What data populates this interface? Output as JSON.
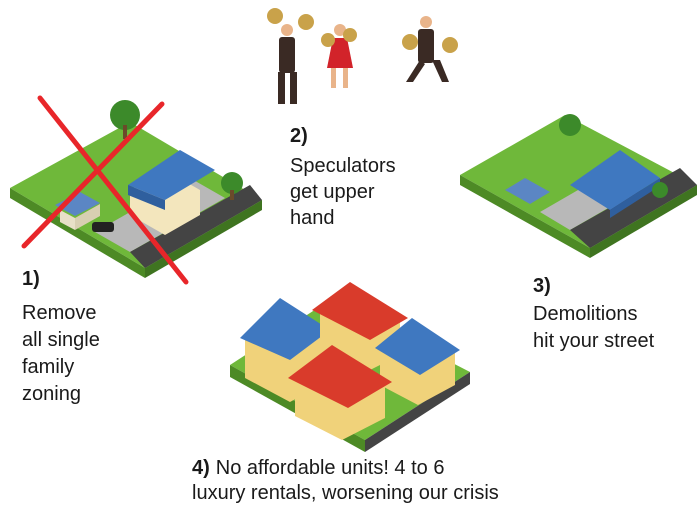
{
  "steps": [
    {
      "number": "1)",
      "lines": [
        "Remove",
        "all single",
        "family",
        "zoning"
      ]
    },
    {
      "number": "2)",
      "lines": [
        "Speculators",
        "get upper",
        "hand"
      ]
    },
    {
      "number": "3)",
      "lines": [
        "Demolitions",
        "hit your street"
      ]
    },
    {
      "number": "4)",
      "lines": [
        "No affordable units! 4 to 6",
        "luxury rentals, worsening our crisis"
      ]
    }
  ]
}
